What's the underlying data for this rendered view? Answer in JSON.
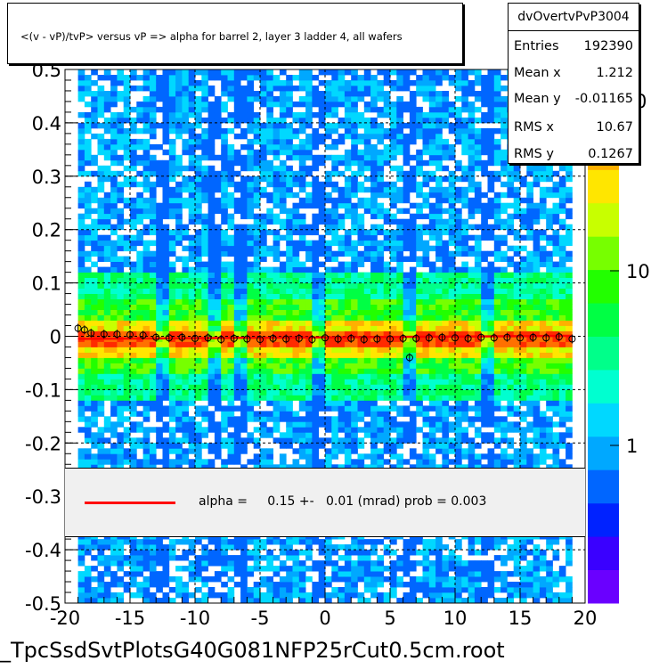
{
  "header": {
    "title": "<(v - vP)/tvP> versus   vP => alpha for barrel 2, layer 3 ladder 4, all wafers"
  },
  "stats": {
    "name": "dvOvertvPvP3004",
    "rows": [
      {
        "label": "Entries",
        "value": "192390"
      },
      {
        "label": "Mean x",
        "value": "1.212"
      },
      {
        "label": "Mean y",
        "value": "-0.01165"
      },
      {
        "label": "RMS x",
        "value": "10.67"
      },
      {
        "label": "RMS y",
        "value": "0.1267"
      }
    ]
  },
  "legend": {
    "text": "alpha =     0.15 +-   0.01 (mrad) prob = 0.003",
    "line_color": "#ff0000"
  },
  "footer": {
    "filename": "_TpcSsdSvtPlotsG40G081NFP25rCut0.5cm.root"
  },
  "chart_data": {
    "type": "heatmap",
    "title": "<(v - vP)/tvP> versus   vP => alpha for barrel 2, layer 3 ladder 4, all wafers",
    "xlim": [
      -20,
      20
    ],
    "ylim": [
      -0.5,
      0.5
    ],
    "x_ticks": [
      -20,
      -15,
      -10,
      -5,
      0,
      5,
      10,
      15,
      20
    ],
    "x_tick_labels": [
      "-20",
      "-15",
      "-10",
      "-5",
      "0",
      "5",
      "10",
      "15",
      "20"
    ],
    "y_ticks": [
      -0.5,
      -0.4,
      -0.3,
      -0.2,
      -0.1,
      0,
      0.1,
      0.2,
      0.3,
      0.4,
      0.5
    ],
    "y_tick_labels": [
      "-0.5",
      "-0.4",
      "-0.3",
      "-0.2",
      "-0.1",
      "0",
      "0.1",
      "0.2",
      "0.3",
      "0.4",
      "0.5"
    ],
    "grid": true,
    "z_log_scale": true,
    "colorbar_tick_labels": [
      "1",
      "10"
    ],
    "colorbar_top_label_partial": "0",
    "occupied_x_range": [
      -19,
      19
    ],
    "gap_x_values": [
      -12.5,
      -8.5,
      -6.5,
      -0.5,
      6.5,
      12.5
    ],
    "profile_points": {
      "x": [
        -19.0,
        -18.5,
        -18.0,
        -17.0,
        -16.0,
        -15.0,
        -14.0,
        -13.0,
        -12.0,
        -11.0,
        -10.0,
        -9.0,
        -8.0,
        -7.0,
        -6.0,
        -5.0,
        -4.0,
        -3.0,
        -2.0,
        -1.0,
        0.0,
        1.0,
        2.0,
        3.0,
        4.0,
        5.0,
        6.0,
        6.5,
        7.0,
        8.0,
        9.0,
        10.0,
        11.0,
        12.0,
        13.0,
        14.0,
        15.0,
        16.0,
        17.0,
        18.0,
        19.0
      ],
      "y": [
        0.015,
        0.012,
        0.006,
        0.004,
        0.004,
        0.003,
        0.002,
        -0.002,
        -0.003,
        -0.002,
        -0.004,
        -0.003,
        -0.006,
        -0.004,
        -0.005,
        -0.006,
        -0.004,
        -0.005,
        -0.004,
        -0.006,
        -0.003,
        -0.005,
        -0.004,
        -0.006,
        -0.005,
        -0.005,
        -0.004,
        -0.04,
        -0.004,
        -0.003,
        -0.002,
        -0.003,
        -0.004,
        -0.002,
        -0.003,
        -0.002,
        -0.003,
        -0.002,
        -0.003,
        -0.001,
        -0.005
      ]
    },
    "fit": {
      "name": "alpha",
      "slope_mrad": 0.15,
      "slope_error_mrad": 0.01,
      "prob": 0.003,
      "x_range": [
        -19,
        19
      ],
      "intercept": -0.002,
      "color": "#ff0000"
    },
    "palette": [
      "#6a00ff",
      "#3a00ff",
      "#0022ff",
      "#0066ff",
      "#00a8ff",
      "#00d8ff",
      "#00ffd0",
      "#00ff8a",
      "#00ff44",
      "#22ff00",
      "#77ff00",
      "#c8ff00",
      "#ffe600",
      "#ffb000",
      "#ff7000",
      "#ff2a00"
    ]
  }
}
